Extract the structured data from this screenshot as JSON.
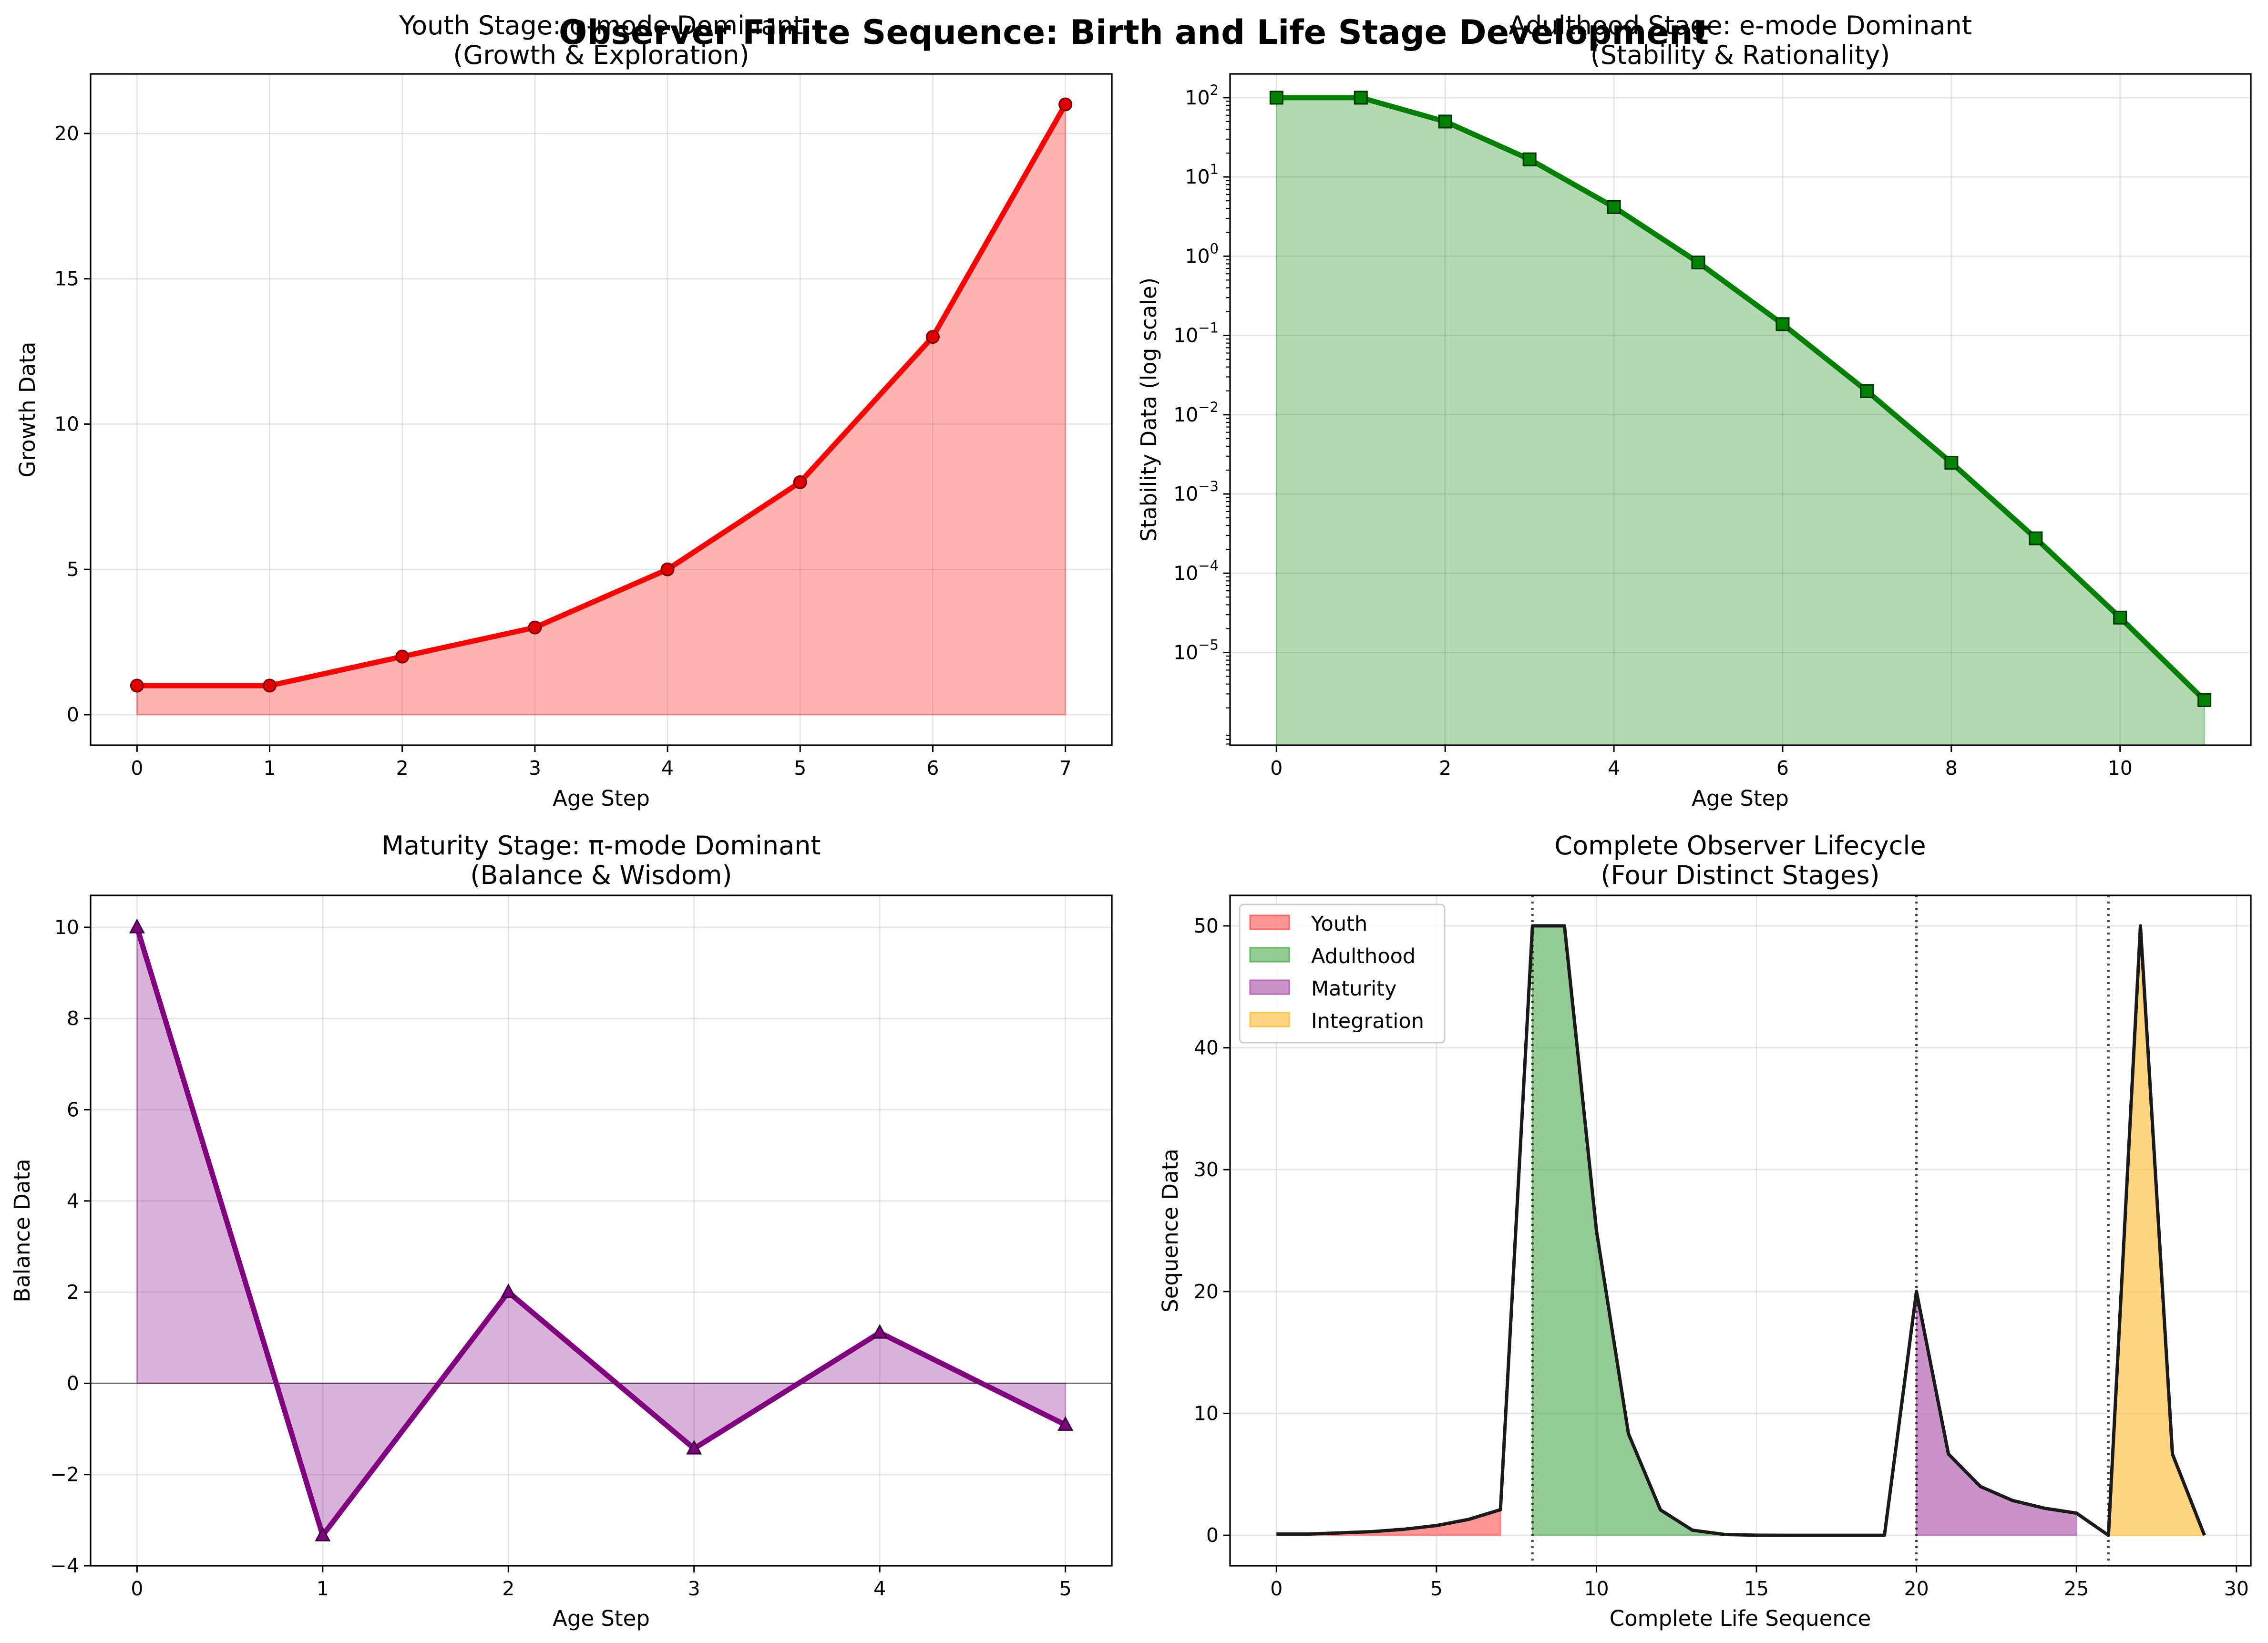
{
  "figure": {
    "suptitle": "Observer Finite Sequence: Birth and Life Stage Development"
  },
  "chart_data": [
    {
      "type": "line",
      "id": "youth",
      "title_line1": "Youth Stage: φ-mode Dominant",
      "title_line2": "(Growth & Exploration)",
      "xlabel": "Age Step",
      "ylabel": "Growth Data",
      "x": [
        0,
        1,
        2,
        3,
        4,
        5,
        6,
        7
      ],
      "values": [
        1,
        1,
        2,
        3,
        5,
        8,
        13,
        21
      ],
      "xlim": [
        -0.35,
        7.35
      ],
      "ylim": [
        -1.05,
        22.05
      ],
      "xticks": [
        0,
        1,
        2,
        3,
        4,
        5,
        6,
        7
      ],
      "yticks": [
        0,
        5,
        10,
        15,
        20
      ],
      "grid": true,
      "marker": "circle",
      "color": "#ff0000",
      "fill_color": "#ffaaaa"
    },
    {
      "type": "line",
      "id": "adulthood",
      "yscale": "log",
      "title_line1": "Adulthood Stage: e-mode Dominant",
      "title_line2": "(Stability & Rationality)",
      "xlabel": "Age Step",
      "ylabel": "Stability Data (log scale)",
      "x": [
        0,
        1,
        2,
        3,
        4,
        5,
        6,
        7,
        8,
        9,
        10,
        11
      ],
      "values": [
        100,
        100,
        50,
        16.667,
        4.1667,
        0.83333,
        0.13889,
        0.019841,
        0.0024802,
        0.00027557,
        2.7557e-05,
        2.5052e-06
      ],
      "xlim": [
        -0.55,
        11.55
      ],
      "ylim_log10": [
        -6.17,
        2.3
      ],
      "xticks": [
        0,
        2,
        4,
        6,
        8,
        10
      ],
      "yticks_exp": [
        -5,
        -4,
        -3,
        -2,
        -1,
        0,
        1,
        2
      ],
      "grid": true,
      "marker": "square",
      "color": "#008000",
      "fill_color": "#b3d9b3"
    },
    {
      "type": "line",
      "id": "maturity",
      "title_line1": "Maturity Stage: π-mode Dominant",
      "title_line2": "(Balance & Wisdom)",
      "xlabel": "Age Step",
      "ylabel": "Balance Data",
      "x": [
        0,
        1,
        2,
        3,
        4,
        5
      ],
      "values": [
        10,
        -3.333,
        2,
        -1.429,
        1.111,
        -0.909
      ],
      "xlim": [
        -0.25,
        5.25
      ],
      "ylim": [
        -4,
        10.7
      ],
      "xticks": [
        0,
        1,
        2,
        3,
        4,
        5
      ],
      "yticks": [
        -4,
        -2,
        0,
        2,
        4,
        6,
        8,
        10
      ],
      "grid": true,
      "marker": "triangle",
      "color": "#800080",
      "fill_color": "#d9b3d9"
    },
    {
      "type": "area",
      "id": "lifecycle",
      "title_line1": "Complete Observer Lifecycle",
      "title_line2": "(Four Distinct Stages)",
      "xlabel": "Complete Life Sequence",
      "ylabel": "Sequence Data",
      "x": [
        0,
        1,
        2,
        3,
        4,
        5,
        6,
        7,
        8,
        9,
        10,
        11,
        12,
        13,
        14,
        15,
        16,
        17,
        18,
        19,
        20,
        21,
        22,
        23,
        24,
        25,
        26,
        27,
        28,
        29
      ],
      "values": [
        0.1,
        0.1,
        0.2,
        0.3,
        0.5,
        0.8,
        1.3,
        2.1,
        50,
        50,
        25,
        8.333,
        2.083,
        0.417,
        0.069,
        0.01,
        0.001,
        0.0001,
        0.0,
        0.0,
        20,
        6.667,
        4,
        2.857,
        2.222,
        1.818,
        0,
        50,
        6.667,
        0
      ],
      "stages": [
        {
          "name": "Youth",
          "x_range": [
            0,
            7
          ],
          "color": "#ff6666"
        },
        {
          "name": "Adulthood",
          "x_range": [
            8,
            19
          ],
          "color": "#66b366"
        },
        {
          "name": "Maturity",
          "x_range": [
            20,
            25
          ],
          "color": "#b366b3"
        },
        {
          "name": "Integration",
          "x_range": [
            26,
            29
          ],
          "color": "#ffc34d"
        }
      ],
      "boundaries": [
        8,
        20,
        26
      ],
      "xlim": [
        -1.45,
        30.45
      ],
      "ylim": [
        -2.5,
        52.5
      ],
      "xticks": [
        0,
        5,
        10,
        15,
        20,
        25,
        30
      ],
      "yticks": [
        0,
        10,
        20,
        30,
        40,
        50
      ],
      "grid": true,
      "legend": "top-left",
      "legend_entries": [
        "Youth",
        "Adulthood",
        "Maturity",
        "Integration"
      ]
    }
  ]
}
